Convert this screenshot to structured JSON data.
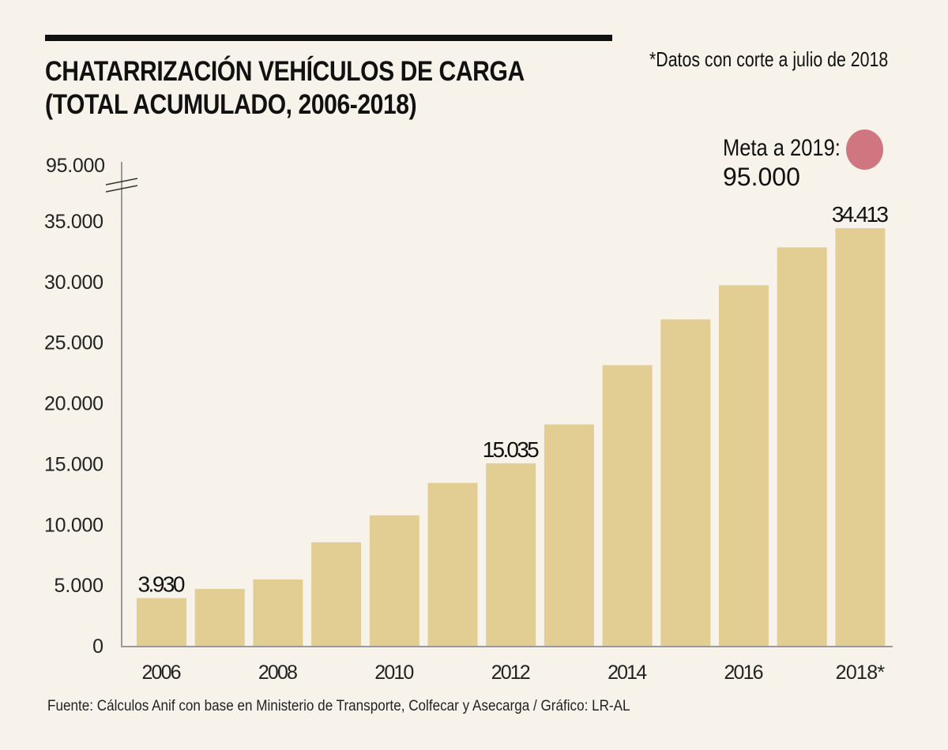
{
  "header": {
    "title_line1": "CHATARRIZACIÓN VEHÍCULOS DE CARGA",
    "title_line2": "(TOTAL ACUMULADO, 2006-2018)",
    "note": "*Datos con corte a julio de 2018"
  },
  "goal": {
    "label": "Meta a 2019:",
    "value": "95.000",
    "color": "#cf7680"
  },
  "footer": {
    "source": "Fuente: Cálculos Anif con base en Ministerio de Transporte, Colfecar y Asecarga / Gráfico: LR-AL"
  },
  "colors": {
    "bar": "#e2cd92",
    "background": "#f7f3ea",
    "axis": "#999999"
  },
  "chart_data": {
    "type": "bar",
    "title": "CHATARRIZACIÓN VEHÍCULOS DE CARGA (TOTAL ACUMULADO, 2006-2018)",
    "xlabel": "",
    "ylabel": "",
    "categories": [
      "2006",
      "2007",
      "2008",
      "2009",
      "2010",
      "2011",
      "2012",
      "2013",
      "2014",
      "2015",
      "2016",
      "2017",
      "2018*"
    ],
    "values": [
      3930,
      4690,
      5470,
      8530,
      10750,
      13420,
      15035,
      18240,
      23130,
      26900,
      29710,
      32830,
      34413
    ],
    "data_labels": [
      {
        "index": 0,
        "text": "3.930"
      },
      {
        "index": 6,
        "text": "15.035"
      },
      {
        "index": 12,
        "text": "34.413"
      }
    ],
    "ylim": [
      0,
      35000
    ],
    "yticks": [
      0,
      5000,
      10000,
      15000,
      20000,
      25000,
      30000,
      35000
    ],
    "ytick_labels": [
      "0",
      "5.000",
      "10.000",
      "15.000",
      "20.000",
      "25.000",
      "30.000",
      "35.000"
    ],
    "axis_break": {
      "label": "95.000",
      "value": 95000
    },
    "xtick_labels": [
      {
        "index": 0,
        "text": "2006"
      },
      {
        "index": 2,
        "text": "2008"
      },
      {
        "index": 4,
        "text": "2010"
      },
      {
        "index": 6,
        "text": "2012"
      },
      {
        "index": 8,
        "text": "2014"
      },
      {
        "index": 10,
        "text": "2016"
      },
      {
        "index": 12,
        "text": "2018*"
      }
    ],
    "grid": false,
    "legend": "none"
  }
}
